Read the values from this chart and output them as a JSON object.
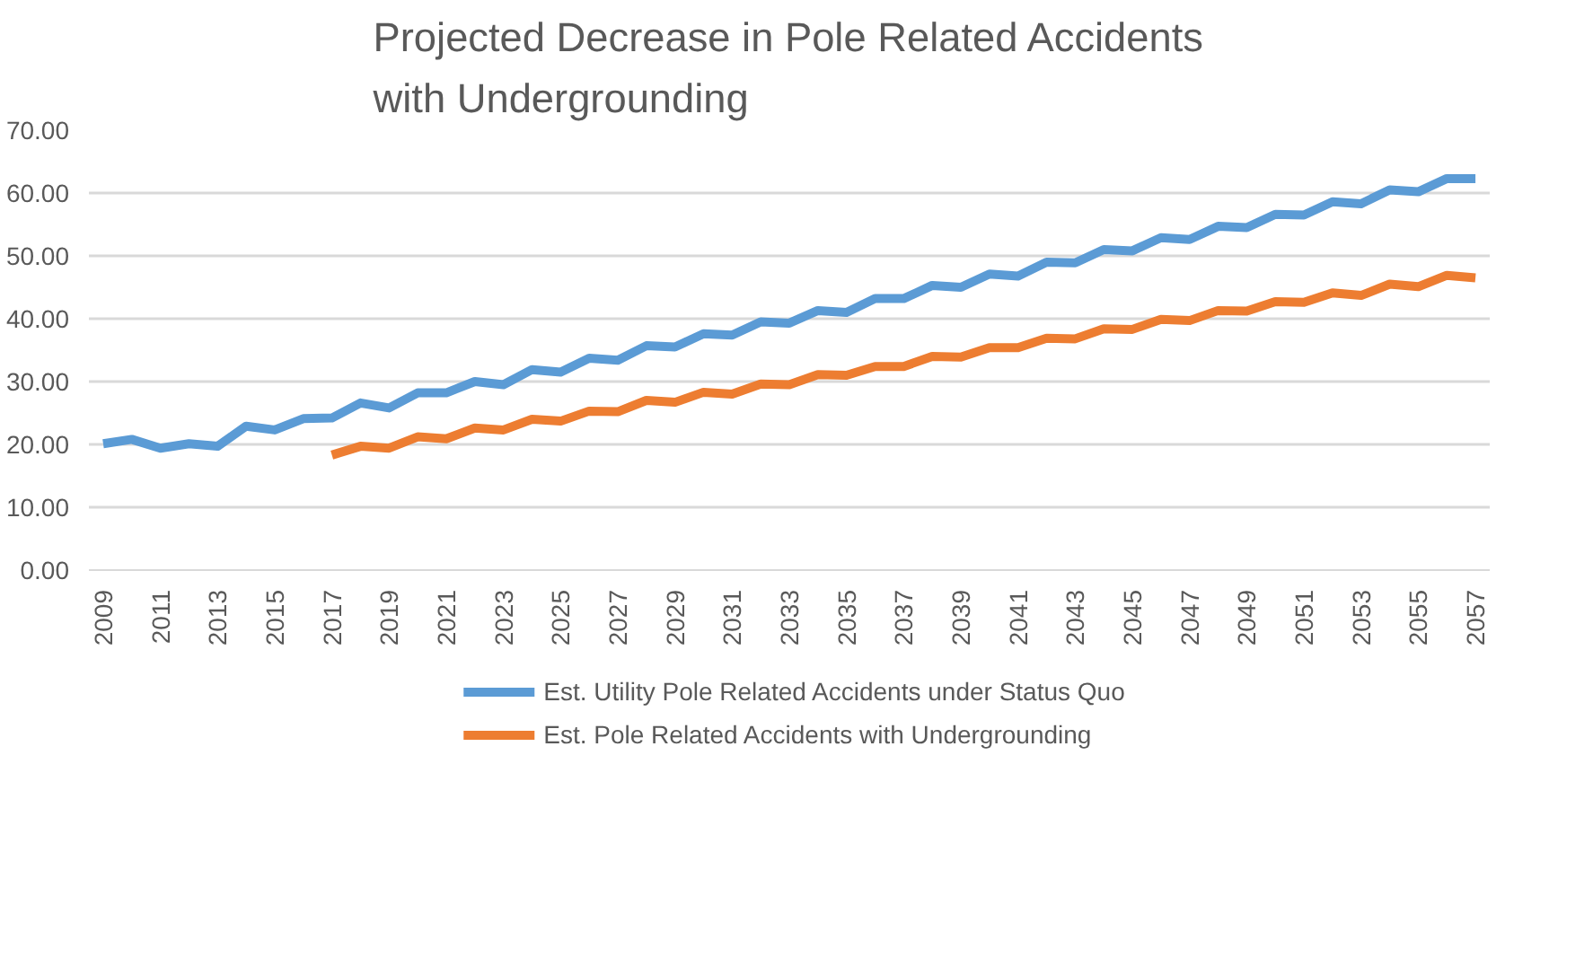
{
  "chart_data": {
    "type": "line",
    "title": "Projected Decrease in Pole Related Accidents\nwith Undergrounding",
    "categories": [
      "2009",
      null,
      "2011",
      null,
      "2013",
      null,
      "2015",
      null,
      "2017",
      null,
      "2019",
      null,
      "2021",
      null,
      "2023",
      null,
      "2025",
      null,
      "2027",
      null,
      "2029",
      null,
      "2031",
      null,
      "2033",
      null,
      "2035",
      null,
      "2037",
      null,
      "2039",
      null,
      "2041",
      null,
      "2043",
      null,
      "2045",
      null,
      "2047",
      null,
      "2049",
      null,
      "2051",
      null,
      "2053",
      null,
      "2055",
      null,
      "2057"
    ],
    "series": [
      {
        "name": "Est. Utility Pole Related Accidents under Status Quo",
        "color": "#5b9bd5",
        "values": [
          20.1,
          20.8,
          19.4,
          20.1,
          19.7,
          22.9,
          22.3,
          24.1,
          24.2,
          26.6,
          25.8,
          28.2,
          28.2,
          30.0,
          29.5,
          31.9,
          31.5,
          33.7,
          33.4,
          35.7,
          35.5,
          37.6,
          37.4,
          39.5,
          39.3,
          41.3,
          41.0,
          43.2,
          43.2,
          45.3,
          45.0,
          47.1,
          46.8,
          49.0,
          48.9,
          51.0,
          50.8,
          52.9,
          52.6,
          54.7,
          54.5,
          56.6,
          56.5,
          58.6,
          58.3,
          60.5,
          60.2,
          62.3,
          62.3
        ]
      },
      {
        "name": "Est. Pole Related Accidents with Undergrounding",
        "color": "#ed7d31",
        "values": [
          null,
          null,
          null,
          null,
          null,
          null,
          null,
          null,
          18.3,
          19.7,
          19.4,
          21.2,
          20.9,
          22.6,
          22.3,
          24.0,
          23.7,
          25.3,
          25.2,
          27.0,
          26.7,
          28.3,
          28.0,
          29.6,
          29.5,
          31.1,
          31.0,
          32.4,
          32.4,
          34.0,
          33.9,
          35.4,
          35.4,
          36.9,
          36.8,
          38.4,
          38.3,
          39.9,
          39.7,
          41.3,
          41.2,
          42.7,
          42.6,
          44.1,
          43.7,
          45.5,
          45.1,
          46.9,
          46.5
        ]
      }
    ],
    "ylim": [
      0,
      70
    ],
    "yticks": [
      {
        "value": 0,
        "label": "0.00"
      },
      {
        "value": 10,
        "label": "10.00"
      },
      {
        "value": 20,
        "label": "20.00"
      },
      {
        "value": 30,
        "label": "30.00"
      },
      {
        "value": 40,
        "label": "40.00"
      },
      {
        "value": 50,
        "label": "50.00"
      },
      {
        "value": 60,
        "label": "60.00"
      },
      {
        "value": 70,
        "label": "70.00"
      }
    ],
    "grid": "y",
    "legend": "bottom",
    "marker": "none",
    "line_style": "solid"
  }
}
